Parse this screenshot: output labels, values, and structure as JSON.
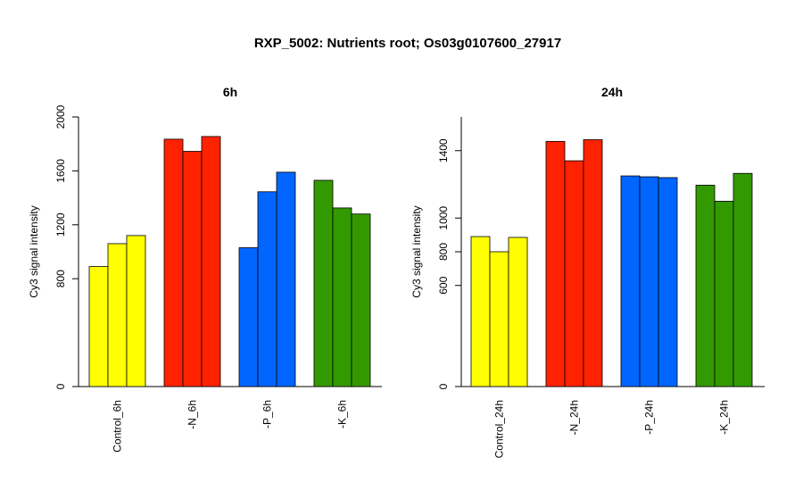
{
  "figure": {
    "title": "RXP_5002: Nutrients root; Os03g0107600_27917"
  },
  "chart_data": [
    {
      "type": "bar",
      "title": "6h",
      "ylabel": "Cy3 signal intensity",
      "xlabel": "",
      "yticks": [
        0,
        800,
        1200,
        1600,
        2000
      ],
      "ylim": [
        0,
        2000
      ],
      "groups": [
        {
          "label": "Control_6h",
          "color": "#FFFF00",
          "values": [
            890,
            1060,
            1120
          ]
        },
        {
          "label": "-N_6h",
          "color": "#FF2200",
          "values": [
            1835,
            1745,
            1855
          ]
        },
        {
          "label": "-P_6h",
          "color": "#0066FF",
          "values": [
            1030,
            1445,
            1590
          ]
        },
        {
          "label": "-K_6h",
          "color": "#339900",
          "values": [
            1530,
            1325,
            1280
          ]
        }
      ]
    },
    {
      "type": "bar",
      "title": "24h",
      "ylabel": "Cy3 signal intensity",
      "xlabel": "",
      "yticks": [
        0,
        600,
        800,
        1000,
        1400
      ],
      "ylim": [
        0,
        1600
      ],
      "groups": [
        {
          "label": "Control_24h",
          "color": "#FFFF00",
          "values": [
            890,
            800,
            885
          ]
        },
        {
          "label": "-N_24h",
          "color": "#FF2200",
          "values": [
            1455,
            1340,
            1465
          ]
        },
        {
          "label": "-P_24h",
          "color": "#0066FF",
          "values": [
            1250,
            1245,
            1240
          ]
        },
        {
          "label": "-K_24h",
          "color": "#339900",
          "values": [
            1195,
            1100,
            1265
          ]
        }
      ]
    }
  ]
}
